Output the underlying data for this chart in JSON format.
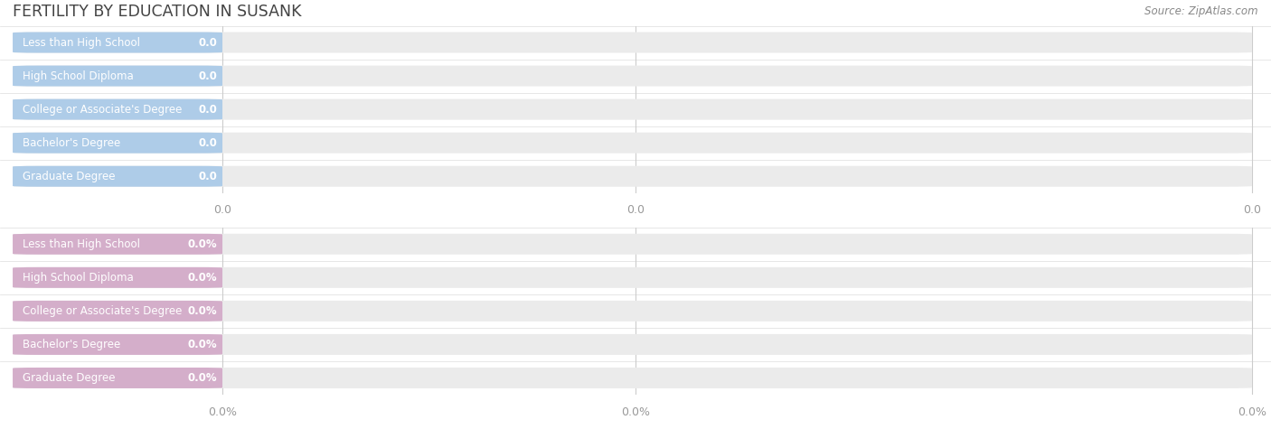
{
  "title": "FERTILITY BY EDUCATION IN SUSANK",
  "source_text": "Source: ZipAtlas.com",
  "categories": [
    "Less than High School",
    "High School Diploma",
    "College or Associate's Degree",
    "Bachelor's Degree",
    "Graduate Degree"
  ],
  "values_top": [
    0.0,
    0.0,
    0.0,
    0.0,
    0.0
  ],
  "values_bottom": [
    0.0,
    0.0,
    0.0,
    0.0,
    0.0
  ],
  "bar_color_top": "#aecce8",
  "bar_bg_color": "#ebebeb",
  "bar_color_bottom": "#d4aeca",
  "title_color": "#444444",
  "tick_color": "#999999",
  "source_color": "#888888",
  "bg_color": "#ffffff",
  "tick_labels_top": [
    "0.0",
    "0.0",
    "0.0"
  ],
  "tick_labels_bot": [
    "0.0%",
    "0.0%",
    "0.0%"
  ],
  "grid_color": "#cccccc",
  "bar_label_color": "white",
  "bar_value_color": "white"
}
